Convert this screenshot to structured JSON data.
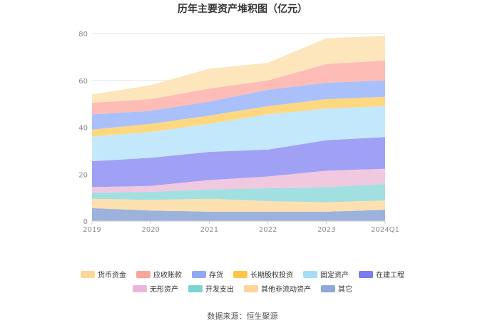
{
  "chart_data": {
    "type": "area",
    "stacked": true,
    "title": "历年主要资产堆积图（亿元）",
    "source": "数据来源：恒生聚源",
    "categories": [
      "2019",
      "2020",
      "2021",
      "2022",
      "2023",
      "2024Q1"
    ],
    "ylim": [
      0,
      80
    ],
    "yticks": [
      0,
      20,
      40,
      60,
      80
    ],
    "grid": true,
    "legend_position": "bottom",
    "series": [
      {
        "name": "其它",
        "color": "#9bb2dc",
        "values": [
          5.5,
          4.5,
          4.0,
          4.0,
          4.0,
          4.8
        ]
      },
      {
        "name": "其他非流动资产",
        "color": "#fde0b0",
        "values": [
          4.0,
          4.5,
          5.5,
          4.5,
          4.0,
          4.0
        ]
      },
      {
        "name": "开发支出",
        "color": "#a2dfe0",
        "values": [
          2.5,
          3.5,
          4.0,
          5.5,
          6.5,
          7.0
        ]
      },
      {
        "name": "无形资产",
        "color": "#f0c8e0",
        "values": [
          2.5,
          2.5,
          4.0,
          5.0,
          7.0,
          6.5
        ]
      },
      {
        "name": "在建工程",
        "color": "#a0a0f5",
        "values": [
          11.0,
          12.0,
          12.0,
          11.5,
          13.0,
          13.5
        ]
      },
      {
        "name": "固定资产",
        "color": "#c4e8fb",
        "values": [
          10.5,
          11.0,
          12.0,
          15.0,
          13.5,
          13.2
        ]
      },
      {
        "name": "长期股权投资",
        "color": "#fdd880",
        "values": [
          3.0,
          3.5,
          3.5,
          3.5,
          4.0,
          4.0
        ]
      },
      {
        "name": "存货",
        "color": "#a9c0fb",
        "values": [
          6.5,
          5.5,
          6.0,
          7.0,
          7.0,
          7.0
        ]
      },
      {
        "name": "应收账款",
        "color": "#fdbdb6",
        "values": [
          5.0,
          5.0,
          5.5,
          4.0,
          8.0,
          8.5
        ]
      },
      {
        "name": "货币资金",
        "color": "#fde5bc",
        "values": [
          3.5,
          6.0,
          8.5,
          7.5,
          11.0,
          10.5
        ]
      }
    ],
    "legend_order": [
      "货币资金",
      "应收账款",
      "存货",
      "长期股权投资",
      "固定资产",
      "在建工程",
      "无形资产",
      "开发支出",
      "其他非流动资产",
      "其它"
    ],
    "legend_swatch_colors": {
      "货币资金": "#fdd69b",
      "应收账款": "#fba49a",
      "存货": "#8ea9f8",
      "长期股权投资": "#fcc54a",
      "固定资产": "#a5dcf8",
      "在建工程": "#7b7cf0",
      "无形资产": "#e8b8da",
      "开发支出": "#7dd3d3",
      "其他非流动资产": "#fdd59a",
      "其它": "#8fa8d8"
    }
  }
}
